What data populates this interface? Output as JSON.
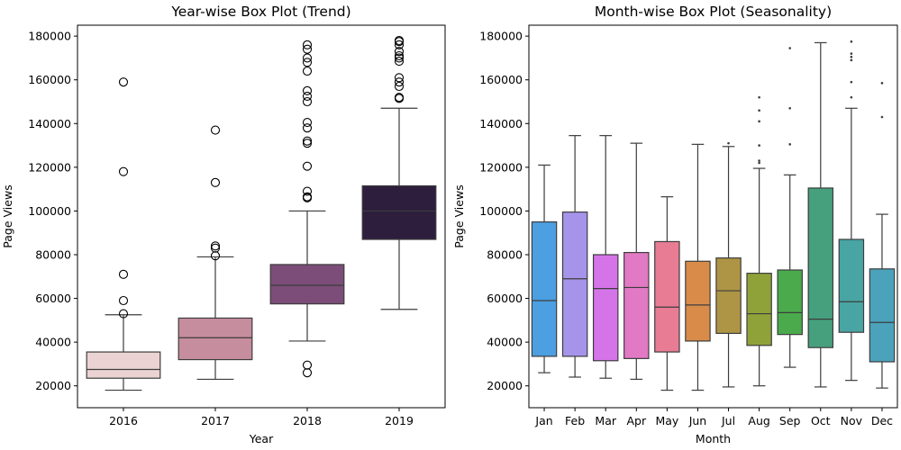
{
  "chart_data": [
    {
      "type": "boxplot",
      "title": "Year-wise Box Plot (Trend)",
      "xlabel": "Year",
      "ylabel": "Page Views",
      "ylim": [
        10000,
        185000
      ],
      "yticks": [
        20000,
        40000,
        60000,
        80000,
        100000,
        120000,
        140000,
        160000,
        180000
      ],
      "flier_style": "open-circle",
      "categories": [
        "2016",
        "2017",
        "2018",
        "2019"
      ],
      "boxes": [
        {
          "label": "2016",
          "color": "#ead3d2",
          "whisker_low": 18000,
          "q1": 23500,
          "median": 27500,
          "q3": 35500,
          "whisker_high": 52500,
          "fliers": [
            53000,
            59000,
            71000,
            118000,
            159000
          ]
        },
        {
          "label": "2017",
          "color": "#c68d9e",
          "whisker_low": 23000,
          "q1": 32000,
          "median": 42000,
          "q3": 51000,
          "whisker_high": 79000,
          "fliers": [
            79500,
            83000,
            84000,
            113000,
            137000
          ]
        },
        {
          "label": "2018",
          "color": "#7b4d78",
          "whisker_low": 40500,
          "q1": 57500,
          "median": 66000,
          "q3": 75500,
          "whisker_high": 100000,
          "fliers": [
            26000,
            29500,
            106000,
            106500,
            109000,
            120500,
            131000,
            132000,
            138000,
            140500,
            150000,
            152500,
            155000,
            164000,
            168000,
            170000,
            174000,
            176000
          ]
        },
        {
          "label": "2019",
          "color": "#2d1e3e",
          "whisker_low": 55000,
          "q1": 87000,
          "median": 100000,
          "q3": 111500,
          "whisker_high": 147000,
          "fliers": [
            151500,
            152000,
            157000,
            159000,
            161000,
            168500,
            170000,
            171000,
            173000,
            176000,
            177500,
            178000
          ]
        }
      ]
    },
    {
      "type": "boxplot",
      "title": "Month-wise Box Plot (Seasonality)",
      "xlabel": "Month",
      "ylabel": "Page Views",
      "ylim": [
        10000,
        185000
      ],
      "yticks": [
        20000,
        40000,
        60000,
        80000,
        100000,
        120000,
        140000,
        160000,
        180000
      ],
      "flier_style": "dot",
      "categories": [
        "Jan",
        "Feb",
        "Mar",
        "Apr",
        "May",
        "Jun",
        "Jul",
        "Aug",
        "Sep",
        "Oct",
        "Nov",
        "Dec"
      ],
      "boxes": [
        {
          "label": "Jan",
          "color": "#4c9fe0",
          "whisker_low": 26000,
          "q1": 33500,
          "median": 59000,
          "q3": 95000,
          "whisker_high": 121000,
          "fliers": []
        },
        {
          "label": "Feb",
          "color": "#a694ea",
          "whisker_low": 24000,
          "q1": 33500,
          "median": 69000,
          "q3": 99500,
          "whisker_high": 134500,
          "fliers": []
        },
        {
          "label": "Mar",
          "color": "#d574e8",
          "whisker_low": 23500,
          "q1": 31500,
          "median": 64500,
          "q3": 80000,
          "whisker_high": 134500,
          "fliers": []
        },
        {
          "label": "Apr",
          "color": "#e279c4",
          "whisker_low": 23000,
          "q1": 32500,
          "median": 65000,
          "q3": 81000,
          "whisker_high": 131000,
          "fliers": []
        },
        {
          "label": "May",
          "color": "#e87c94",
          "whisker_low": 18000,
          "q1": 35500,
          "median": 56000,
          "q3": 86000,
          "whisker_high": 106500,
          "fliers": []
        },
        {
          "label": "Jun",
          "color": "#d98b4a",
          "whisker_low": 18000,
          "q1": 40500,
          "median": 57000,
          "q3": 77000,
          "whisker_high": 130500,
          "fliers": []
        },
        {
          "label": "Jul",
          "color": "#ae9545",
          "whisker_low": 19500,
          "q1": 44000,
          "median": 63500,
          "q3": 78500,
          "whisker_high": 129500,
          "fliers": [
            131000
          ]
        },
        {
          "label": "Aug",
          "color": "#8fa23a",
          "whisker_low": 20000,
          "q1": 38500,
          "median": 53000,
          "q3": 71500,
          "whisker_high": 119500,
          "fliers": [
            122000,
            123000,
            130000,
            141000,
            146000,
            152000
          ]
        },
        {
          "label": "Sep",
          "color": "#4bab4c",
          "whisker_low": 28500,
          "q1": 43500,
          "median": 53500,
          "q3": 73000,
          "whisker_high": 116500,
          "fliers": [
            130500,
            147000,
            174500
          ]
        },
        {
          "label": "Oct",
          "color": "#46a07d",
          "whisker_low": 19500,
          "q1": 37500,
          "median": 50500,
          "q3": 110500,
          "whisker_high": 177000,
          "fliers": []
        },
        {
          "label": "Nov",
          "color": "#48a5a3",
          "whisker_low": 22500,
          "q1": 44500,
          "median": 58500,
          "q3": 87000,
          "whisker_high": 147000,
          "fliers": [
            152000,
            159000,
            169000,
            170500,
            172000,
            177500
          ]
        },
        {
          "label": "Dec",
          "color": "#4aa2bb",
          "whisker_low": 19000,
          "q1": 31000,
          "median": 49000,
          "q3": 73500,
          "whisker_high": 98500,
          "fliers": [
            143000,
            158500
          ]
        }
      ]
    }
  ]
}
